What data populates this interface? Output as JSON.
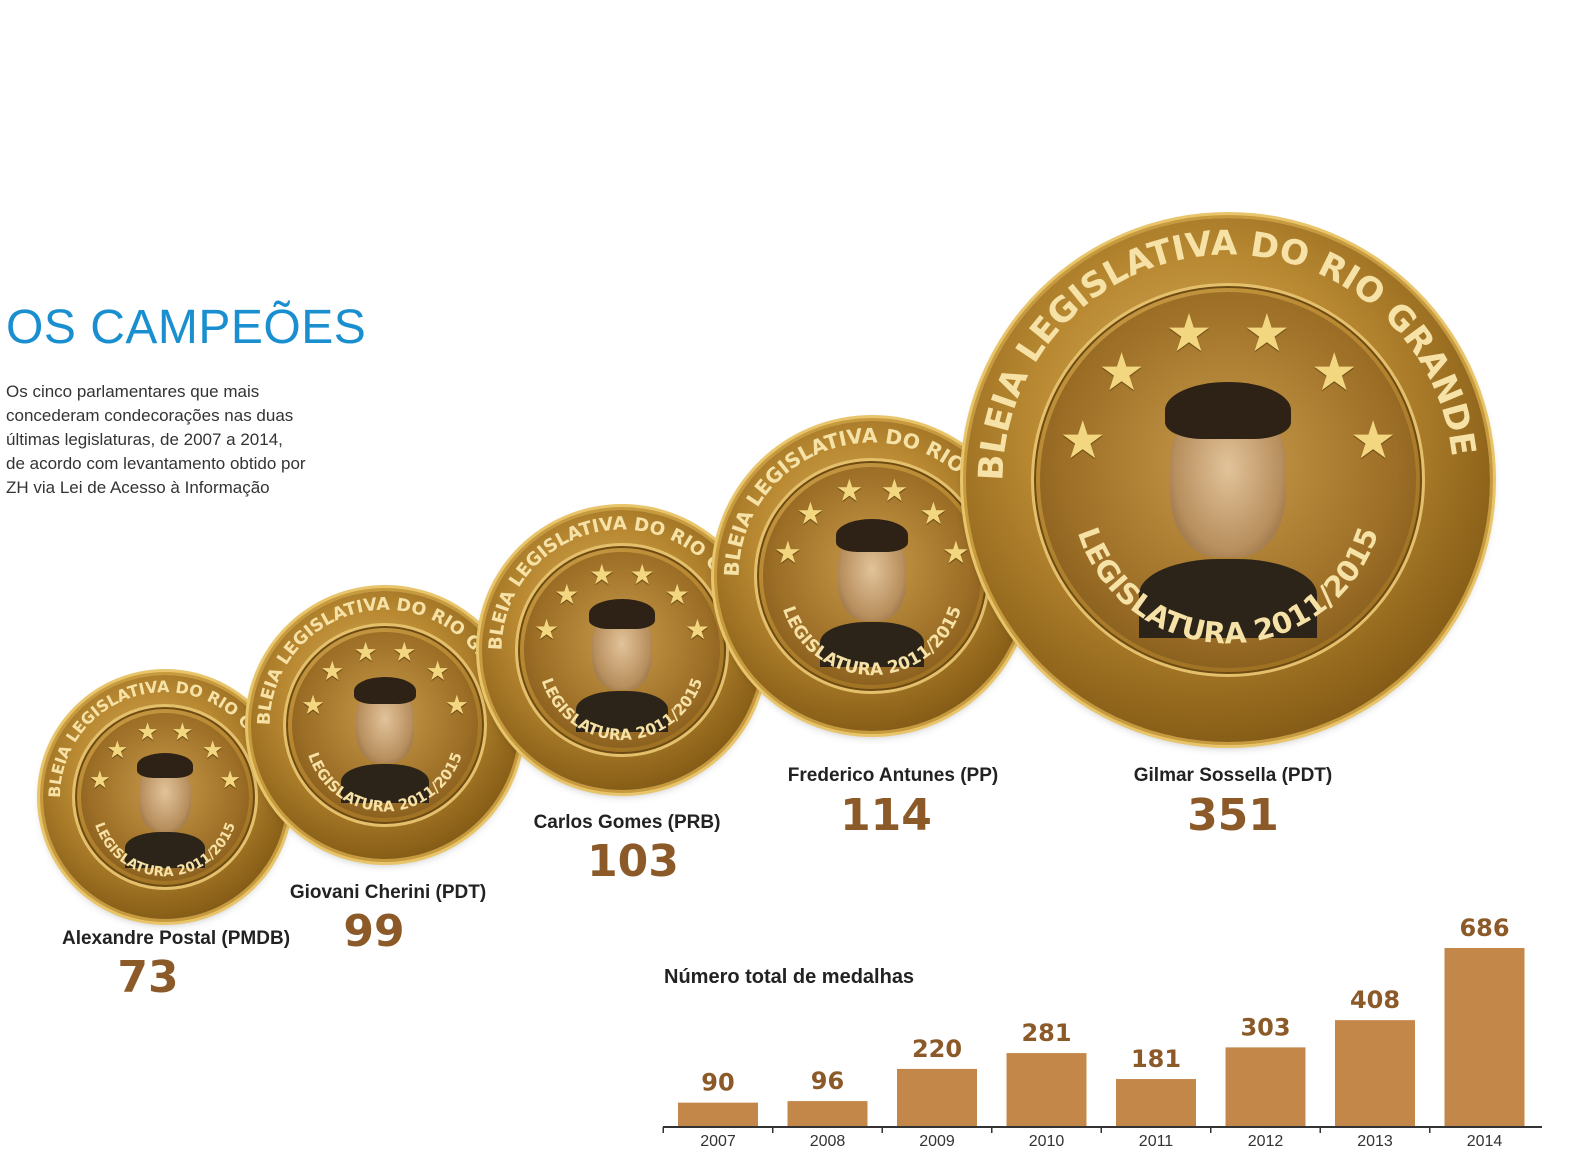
{
  "header": {
    "title": "OS CAMPEÕES",
    "lead_lines": [
      "Os cinco parlamentares que mais",
      "concederam condecorações nas duas",
      "últimas legislaturas, de 2007 a 2014,",
      "de acordo com levantamento obtido por",
      "ZH via Lei de Acesso à Informação"
    ]
  },
  "coin_text": {
    "top": "ASSEMBLEIA LEGISLATIVA DO RIO GRANDE DO SUL",
    "bottom": "LEGISLATURA 2011/2015"
  },
  "champions": [
    {
      "name": "Alexandre Postal (PMDB)",
      "count": "73"
    },
    {
      "name": "Giovani Cherini (PDT)",
      "count": "99"
    },
    {
      "name": "Carlos Gomes (PRB)",
      "count": "103"
    },
    {
      "name": "Frederico Antunes (PP)",
      "count": "114"
    },
    {
      "name": "Gilmar Sossella (PDT)",
      "count": "351"
    }
  ],
  "chart_data": {
    "type": "bar",
    "title": "Número total de medalhas",
    "categories": [
      "2007",
      "2008",
      "2009",
      "2010",
      "2011",
      "2012",
      "2013",
      "2014"
    ],
    "values": [
      90,
      96,
      220,
      281,
      181,
      303,
      408,
      686
    ],
    "xlabel": "",
    "ylabel": "",
    "ylim": [
      0,
      686
    ],
    "grid": false,
    "bar_color": "#c4874a",
    "value_label_color": "#8b5a28"
  },
  "colors": {
    "title": "#1a8fd0",
    "number": "#8b5a28",
    "coin_gold": "#b98932"
  }
}
